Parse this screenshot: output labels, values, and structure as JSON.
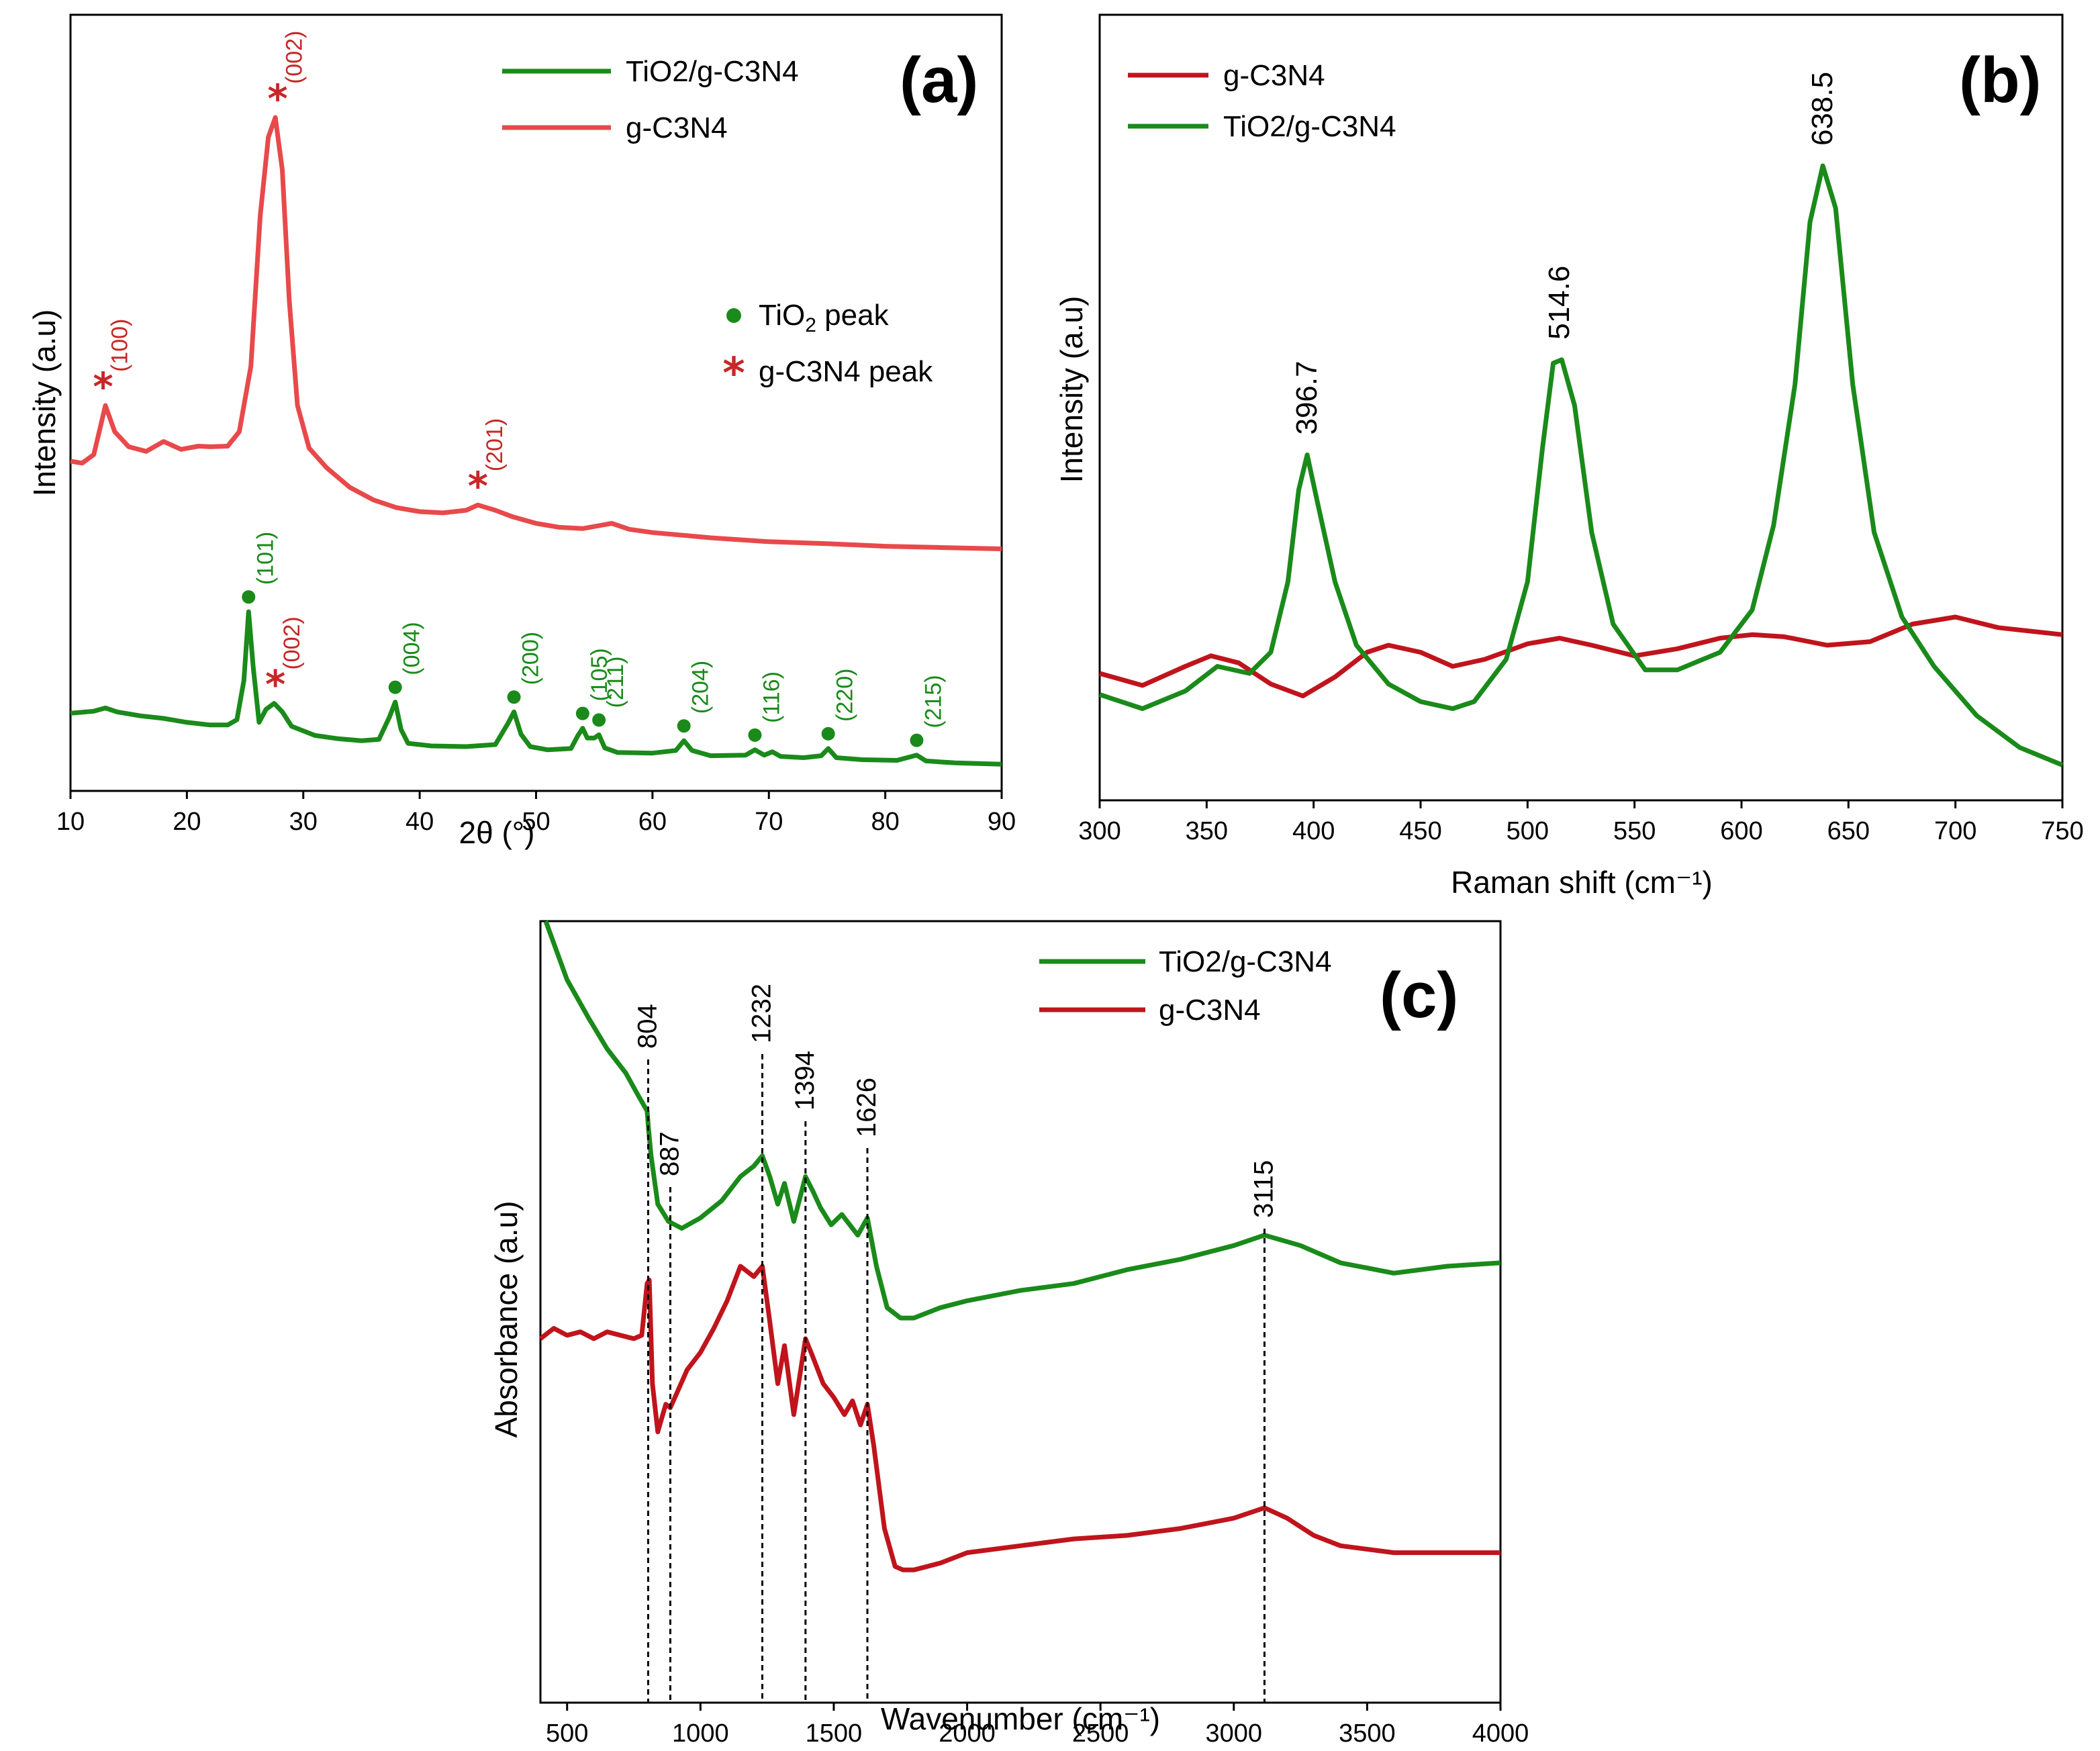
{
  "chart_data": [
    {
      "panel": "(a)",
      "type": "line",
      "title": "",
      "xlabel": "2θ (°)",
      "ylabel": "Intensity (a.u)",
      "xlim": [
        10,
        90
      ],
      "ylim": [
        0,
        100
      ],
      "xticks": [
        10,
        20,
        30,
        40,
        50,
        60,
        70,
        80,
        90
      ],
      "legend_position": "top-right",
      "series": [
        {
          "name": "TiO2/g-C3N4",
          "color": "#1a8a1a",
          "x": [
            10,
            12,
            13,
            14,
            16,
            18,
            20,
            22,
            23.5,
            24.3,
            24.9,
            25.3,
            25.7,
            26.2,
            26.8,
            27.5,
            28.2,
            29,
            31,
            33,
            35,
            36.5,
            37.4,
            37.9,
            38.4,
            39,
            41,
            44,
            46.5,
            47.6,
            48.1,
            48.7,
            49.5,
            51,
            53,
            53.6,
            54,
            54.4,
            55,
            55.4,
            55.9,
            57,
            60,
            62,
            62.7,
            63.4,
            65,
            68,
            68.8,
            69.6,
            70.3,
            71,
            73,
            74.5,
            75.1,
            75.8,
            78,
            81,
            82.7,
            83.5,
            86,
            90
          ],
          "values": [
            9,
            9.3,
            9.8,
            9.2,
            8.6,
            8.2,
            7.6,
            7.2,
            7.2,
            8,
            14,
            24.5,
            16,
            7.6,
            9.6,
            10.5,
            9.2,
            7,
            5.6,
            5.1,
            4.8,
            5,
            8.4,
            10.7,
            6.5,
            4.4,
            4,
            3.9,
            4.2,
            7.5,
            9.2,
            5.8,
            3.9,
            3.4,
            3.6,
            5.6,
            6.7,
            5.2,
            5.2,
            5.7,
            3.7,
            3,
            2.9,
            3.3,
            4.8,
            3.3,
            2.5,
            2.6,
            3.4,
            2.6,
            3.1,
            2.4,
            2.2,
            2.5,
            3.6,
            2.2,
            1.9,
            1.8,
            2.6,
            1.7,
            1.4,
            1.2
          ]
        },
        {
          "name": "g-C3N4",
          "color": "#e8494b",
          "x": [
            10,
            11,
            12,
            12.6,
            13,
            13.8,
            15,
            16.5,
            18,
            19.5,
            21,
            22,
            23.5,
            24.5,
            25.5,
            26.3,
            27,
            27.6,
            28.2,
            28.8,
            29.5,
            30.5,
            32,
            34,
            36,
            38,
            40,
            42,
            44,
            45,
            46.5,
            48,
            50,
            52,
            54,
            56.5,
            58,
            60,
            65,
            70,
            75,
            80,
            85,
            90
          ],
          "values": [
            47.5,
            47.2,
            48.5,
            53,
            56,
            52,
            49.7,
            49,
            50.5,
            49.3,
            49.8,
            49.7,
            49.8,
            52,
            62,
            85,
            97,
            100,
            92,
            72,
            56,
            49.5,
            46.5,
            43.5,
            41.6,
            40.4,
            39.8,
            39.6,
            40,
            40.8,
            40,
            39,
            38,
            37.4,
            37.2,
            38,
            37.1,
            36.6,
            35.8,
            35.2,
            34.9,
            34.5,
            34.3,
            34.1
          ]
        }
      ],
      "annotations": [
        {
          "label": "(100)",
          "x": 12.8,
          "y": 56,
          "marker": "star",
          "color": "#c62828"
        },
        {
          "label": "(002)",
          "x": 27.8,
          "y": 100,
          "marker": "star",
          "color": "#c62828"
        },
        {
          "label": "(201)",
          "x": 45,
          "y": 40.8,
          "marker": "star",
          "color": "#c62828"
        },
        {
          "label": "(101)",
          "x": 25.3,
          "y": 24.5,
          "marker": "dot",
          "color": "#1a8a1a"
        },
        {
          "label": "(002)",
          "x": 27.6,
          "y": 10.5,
          "marker": "star",
          "color": "#c62828"
        },
        {
          "label": "(004)",
          "x": 37.9,
          "y": 10.7,
          "marker": "dot",
          "color": "#1a8a1a"
        },
        {
          "label": "(200)",
          "x": 48.1,
          "y": 9.2,
          "marker": "dot",
          "color": "#1a8a1a"
        },
        {
          "label": "(105)",
          "x": 54,
          "y": 6.7,
          "marker": "dot",
          "color": "#1a8a1a"
        },
        {
          "label": "(211)",
          "x": 55.4,
          "y": 5.7,
          "marker": "dot",
          "color": "#1a8a1a"
        },
        {
          "label": "(204)",
          "x": 62.7,
          "y": 4.8,
          "marker": "dot",
          "color": "#1a8a1a"
        },
        {
          "label": "(116)",
          "x": 68.8,
          "y": 3.4,
          "marker": "dot",
          "color": "#1a8a1a"
        },
        {
          "label": "(220)",
          "x": 75.1,
          "y": 3.6,
          "marker": "dot",
          "color": "#1a8a1a"
        },
        {
          "label": "(215)",
          "x": 82.7,
          "y": 2.6,
          "marker": "dot",
          "color": "#1a8a1a"
        }
      ],
      "marker_legend": [
        {
          "marker": "dot",
          "color": "#1a8a1a",
          "label": "TiO",
          "sub": "2",
          "suffix": " peak"
        },
        {
          "marker": "star",
          "color": "#c62828",
          "label": "g-C3N4 peak",
          "sub": "",
          "suffix": ""
        }
      ]
    },
    {
      "panel": "(b)",
      "type": "line",
      "title": "",
      "xlabel": "Raman shift (cm⁻¹)",
      "ylabel": "Intensity (a.u)",
      "xlim": [
        300,
        750
      ],
      "ylim": [
        0,
        100
      ],
      "xticks": [
        300,
        350,
        400,
        450,
        500,
        550,
        600,
        650,
        700,
        750
      ],
      "legend_position": "top-left",
      "series": [
        {
          "name": "g-C3N4",
          "color": "#c0141c",
          "x": [
            300,
            320,
            340,
            352,
            365,
            380,
            395,
            410,
            425,
            435,
            450,
            465,
            480,
            500,
            515,
            530,
            550,
            570,
            590,
            605,
            620,
            640,
            660,
            680,
            700,
            720,
            750
          ],
          "values": [
            14,
            12.3,
            15,
            16.5,
            15.5,
            12.5,
            10.8,
            13.5,
            17,
            18,
            17,
            15,
            16,
            18.2,
            19,
            18,
            16.5,
            17.5,
            19,
            19.5,
            19.2,
            18,
            18.5,
            21,
            22,
            20.5,
            19.5
          ]
        },
        {
          "name": "TiO2/g-C3N4",
          "color": "#1a8a1a",
          "x": [
            300,
            320,
            340,
            355,
            370,
            380,
            388,
            393,
            397,
            402,
            410,
            420,
            435,
            450,
            465,
            475,
            490,
            500,
            507,
            512,
            516,
            522,
            530,
            540,
            555,
            570,
            590,
            605,
            615,
            625,
            632,
            638,
            644,
            652,
            662,
            675,
            690,
            710,
            730,
            750
          ],
          "values": [
            11,
            9,
            11.5,
            15,
            14,
            17,
            27,
            40,
            45,
            38,
            27,
            18,
            12.5,
            10,
            9,
            10,
            16,
            27,
            46,
            58,
            58.5,
            52,
            34,
            21,
            14.5,
            14.5,
            17,
            23,
            35,
            55,
            78,
            86,
            80,
            55,
            34,
            22,
            15,
            8,
            3.5,
            1
          ]
        }
      ],
      "annotations": [
        {
          "label": "396.7",
          "x": 397,
          "y": 45
        },
        {
          "label": "514.6",
          "x": 515,
          "y": 58.5
        },
        {
          "label": "638.5",
          "x": 638,
          "y": 86
        }
      ]
    },
    {
      "panel": "(c)",
      "type": "line",
      "title": "",
      "xlabel": "Wavenumber (cm⁻¹)",
      "ylabel": "Absorbance (a.u)",
      "xlim": [
        400,
        4000
      ],
      "ylim": [
        0,
        100
      ],
      "xticks": [
        500,
        1000,
        1500,
        2000,
        2500,
        3000,
        3500,
        4000
      ],
      "legend_position": "top-right",
      "series": [
        {
          "name": "TiO2/g-C3N4",
          "color": "#1a8a1a",
          "x": [
            420,
            500,
            580,
            650,
            720,
            770,
            800,
            805,
            815,
            840,
            880,
            930,
            1000,
            1080,
            1150,
            1200,
            1232,
            1260,
            1290,
            1315,
            1350,
            1394,
            1420,
            1450,
            1490,
            1530,
            1560,
            1590,
            1626,
            1660,
            1700,
            1750,
            1800,
            1900,
            2000,
            2200,
            2400,
            2600,
            2800,
            3000,
            3115,
            3250,
            3400,
            3600,
            3800,
            4000
          ],
          "values": [
            100,
            91.5,
            86,
            81.5,
            78,
            74.5,
            72.5,
            70,
            66,
            59,
            56.5,
            55.5,
            57,
            59.5,
            63,
            64.5,
            66,
            63,
            59,
            62,
            56.5,
            63,
            61,
            58.5,
            56,
            57.5,
            56,
            54.5,
            57,
            50,
            44,
            42.5,
            42.5,
            44,
            45,
            46.5,
            47.5,
            49.5,
            51,
            53,
            54.5,
            53,
            50.5,
            49,
            50,
            50.5
          ]
        },
        {
          "name": "g-C3N4",
          "color": "#c0141c",
          "x": [
            400,
            450,
            500,
            550,
            600,
            650,
            700,
            750,
            780,
            800,
            808,
            820,
            840,
            870,
            887,
            910,
            950,
            1000,
            1050,
            1100,
            1150,
            1200,
            1232,
            1260,
            1290,
            1315,
            1350,
            1394,
            1420,
            1460,
            1500,
            1540,
            1570,
            1600,
            1626,
            1650,
            1690,
            1730,
            1760,
            1800,
            1900,
            2000,
            2200,
            2400,
            2600,
            2800,
            3000,
            3115,
            3200,
            3300,
            3400,
            3600,
            3800,
            4000
          ],
          "values": [
            39.5,
            41,
            40,
            40.5,
            39.5,
            40.5,
            40,
            39.5,
            40,
            47.5,
            48,
            33,
            26,
            30,
            29.5,
            31.5,
            35,
            37.5,
            41,
            45,
            50,
            48.5,
            50,
            42,
            33,
            38.5,
            28.5,
            39.5,
            37,
            33,
            31,
            28.5,
            30.5,
            27,
            30,
            24,
            12,
            6.5,
            6,
            6,
            7,
            8.5,
            9.5,
            10.5,
            11,
            12,
            13.5,
            15,
            13.5,
            11,
            9.5,
            8.5,
            8.5,
            8.5
          ]
        }
      ],
      "reference_lines": [
        {
          "label": "804",
          "x": 804
        },
        {
          "label": "887",
          "x": 887
        },
        {
          "label": "1232",
          "x": 1232
        },
        {
          "label": "1394",
          "x": 1394
        },
        {
          "label": "1626",
          "x": 1626
        },
        {
          "label": "3115",
          "x": 3115
        }
      ]
    }
  ]
}
